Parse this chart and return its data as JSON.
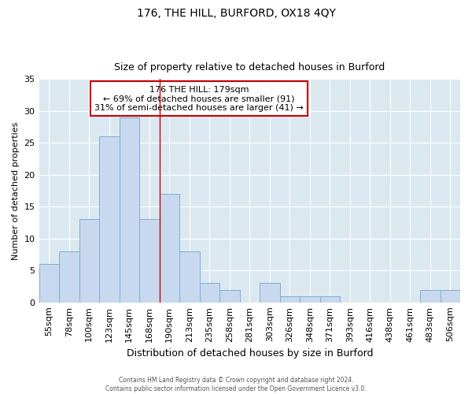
{
  "title1": "176, THE HILL, BURFORD, OX18 4QY",
  "title2": "Size of property relative to detached houses in Burford",
  "xlabel": "Distribution of detached houses by size in Burford",
  "ylabel": "Number of detached properties",
  "categories": [
    "55sqm",
    "78sqm",
    "100sqm",
    "123sqm",
    "145sqm",
    "168sqm",
    "190sqm",
    "213sqm",
    "235sqm",
    "258sqm",
    "281sqm",
    "303sqm",
    "326sqm",
    "348sqm",
    "371sqm",
    "393sqm",
    "416sqm",
    "438sqm",
    "461sqm",
    "483sqm",
    "506sqm"
  ],
  "values": [
    6,
    8,
    13,
    26,
    29,
    13,
    17,
    8,
    3,
    2,
    0,
    3,
    1,
    1,
    1,
    0,
    0,
    0,
    0,
    2,
    2
  ],
  "bar_color": "#c8d8ee",
  "bar_edge_color": "#7bafd4",
  "vline_x": 5.5,
  "vline_color": "#cc0000",
  "annotation_lines": [
    "176 THE HILL: 179sqm",
    "← 69% of detached houses are smaller (91)",
    "31% of semi-detached houses are larger (41) →"
  ],
  "annotation_box_color": "#ffffff",
  "annotation_box_edge_color": "#cc0000",
  "ylim": [
    0,
    35
  ],
  "yticks": [
    0,
    5,
    10,
    15,
    20,
    25,
    30,
    35
  ],
  "background_color": "#dce8f0",
  "fig_background_color": "#ffffff",
  "grid_color": "#ffffff",
  "footer": "Contains HM Land Registry data © Crown copyright and database right 2024.\nContains public sector information licensed under the Open Government Licence v3.0."
}
